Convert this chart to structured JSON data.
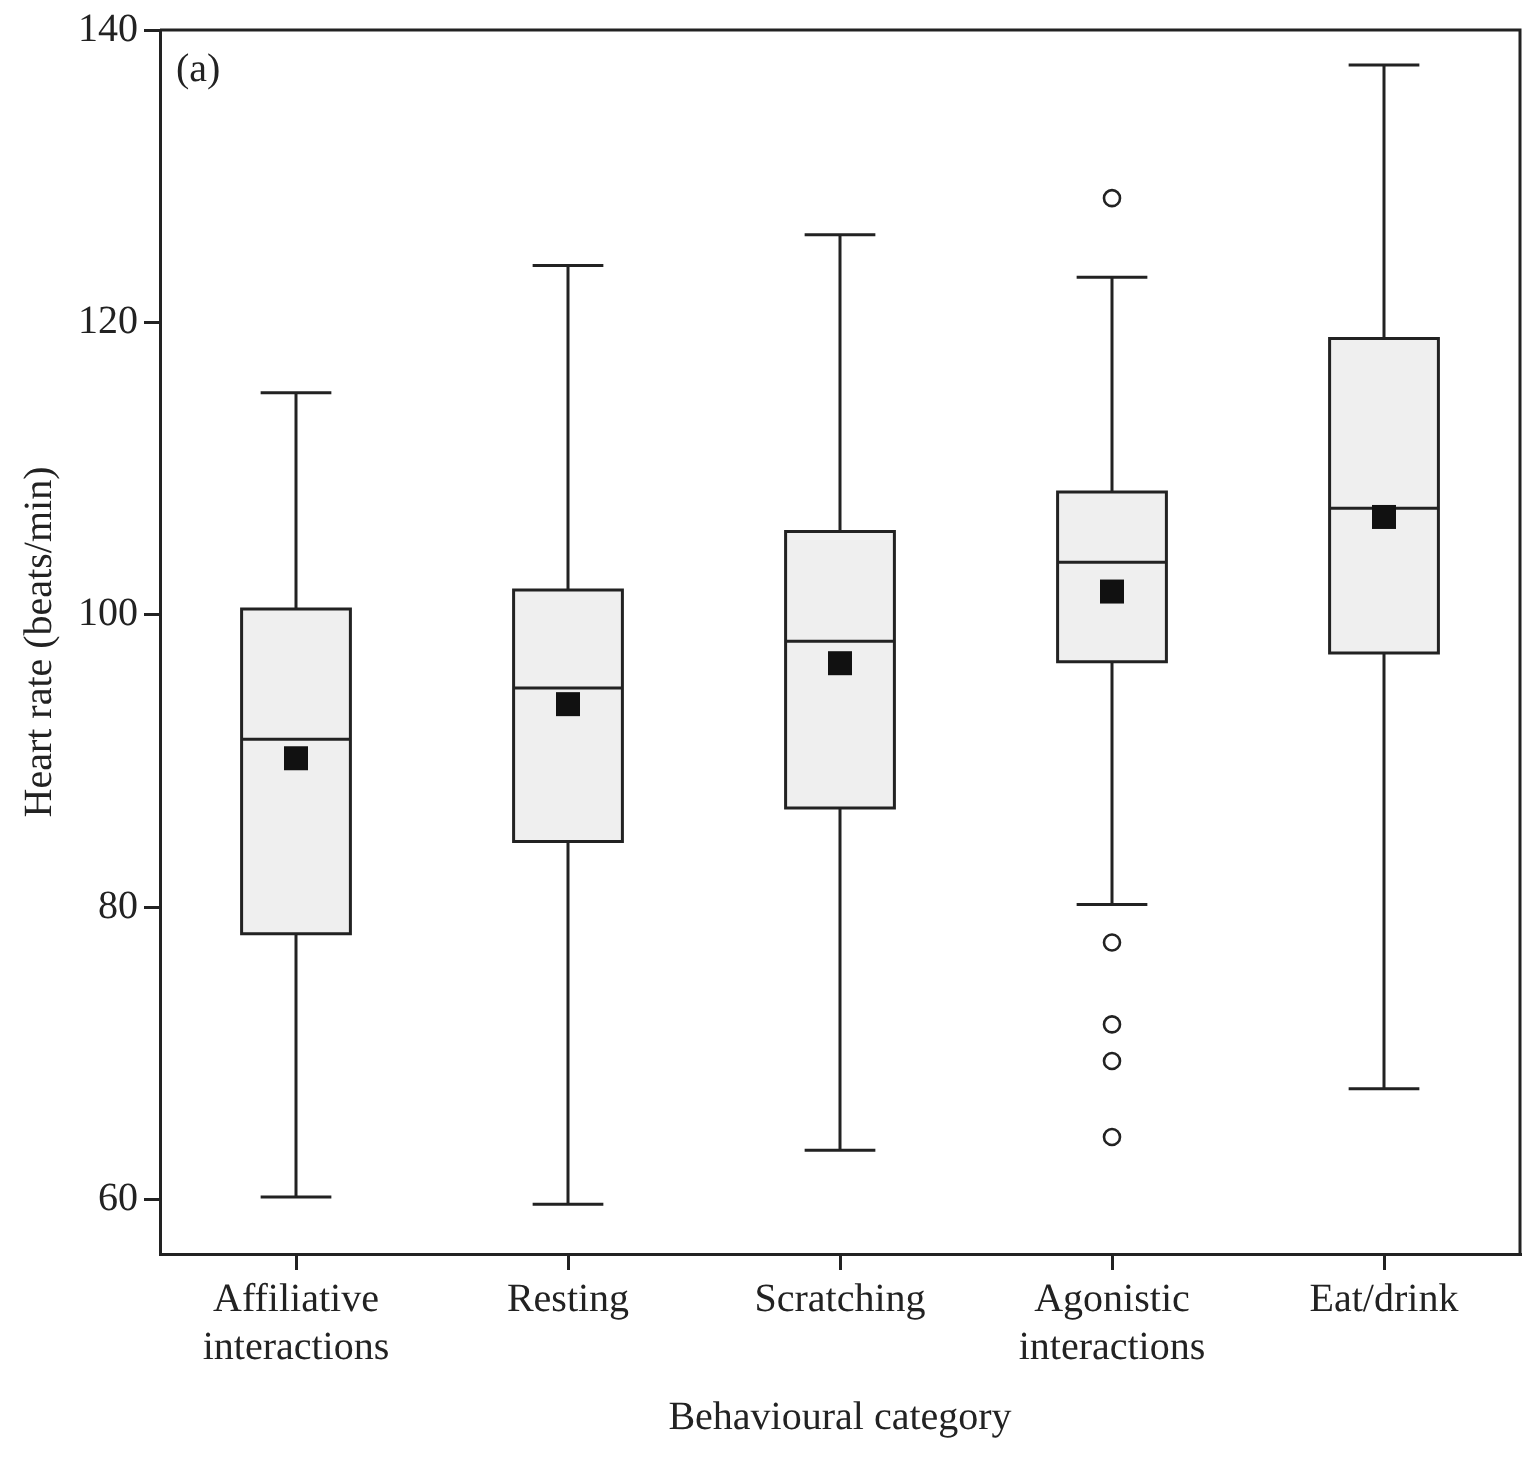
{
  "chart_data": {
    "type": "box",
    "xlabel": "Behavioural category",
    "ylabel": "Heart rate (beats/min)",
    "annotations": [
      "(a)"
    ],
    "categories": [
      "Affiliative interactions",
      "Resting",
      "Scratching",
      "Agonistic interactions",
      "Eat/drink"
    ],
    "ylim": [
      56.3,
      140
    ],
    "yticks": [
      60,
      80,
      100,
      120,
      140
    ],
    "grid": false,
    "legend": false,
    "boxes": [
      {
        "low": 60.2,
        "q1": 78.2,
        "median": 91.5,
        "q3": 100.4,
        "high": 115.2,
        "mean": 90.2
      },
      {
        "low": 59.7,
        "q1": 84.5,
        "median": 95.0,
        "q3": 101.7,
        "high": 123.9,
        "mean": 93.9
      },
      {
        "low": 63.4,
        "q1": 86.8,
        "median": 98.2,
        "q3": 105.7,
        "high": 126.0,
        "mean": 96.7
      },
      {
        "low": 80.2,
        "q1": 96.8,
        "median": 103.6,
        "q3": 108.4,
        "high": 123.1,
        "mean": 101.6,
        "outliers": [
          128.5,
          77.6,
          72.0,
          69.5,
          64.3
        ]
      },
      {
        "low": 67.6,
        "q1": 97.4,
        "median": 107.3,
        "q3": 118.9,
        "high": 137.6,
        "mean": 106.7
      }
    ]
  }
}
